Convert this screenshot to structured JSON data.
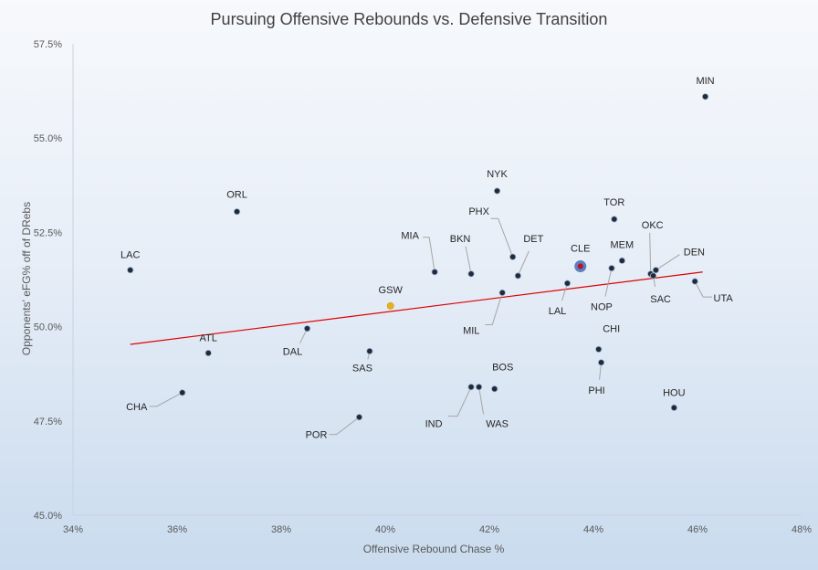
{
  "chart_data": {
    "type": "scatter",
    "title": "Pursuing Offensive Rebounds vs. Defensive Transition",
    "xlabel": "Offensive Rebound Chase %",
    "ylabel": "Opponents' eFG% off of DRebs",
    "xlim": [
      34,
      48
    ],
    "ylim": [
      45.0,
      57.5
    ],
    "x_ticks": [
      34,
      36,
      38,
      40,
      42,
      44,
      46,
      48
    ],
    "x_tick_labels": [
      "34%",
      "36%",
      "38%",
      "40%",
      "42%",
      "44%",
      "46%",
      "48%"
    ],
    "y_ticks": [
      45.0,
      47.5,
      50.0,
      52.5,
      55.0,
      57.5
    ],
    "y_tick_labels": [
      "45.0%",
      "47.5%",
      "50.0%",
      "52.5%",
      "55.0%",
      "57.5%"
    ],
    "grid": false,
    "trendline": {
      "type": "linear",
      "color": "#e00000",
      "x_range": [
        35.1,
        46.1
      ],
      "y_start": 49.53,
      "y_end": 51.45
    },
    "colors": {
      "default_point": "#1f2a3d",
      "point_outline": "#9fb3cc",
      "gsw": "#e8b21a",
      "cle": "#5b7fbf",
      "cle_center": "#c0102a",
      "trend": "#e00000"
    },
    "points": [
      {
        "team": "MIN",
        "x": 46.15,
        "y": 56.1
      },
      {
        "team": "NYK",
        "x": 42.15,
        "y": 53.6
      },
      {
        "team": "ORL",
        "x": 37.15,
        "y": 53.05
      },
      {
        "team": "TOR",
        "x": 44.4,
        "y": 52.85
      },
      {
        "team": "PHX",
        "x": 42.45,
        "y": 51.85
      },
      {
        "team": "MEM",
        "x": 44.55,
        "y": 51.75
      },
      {
        "team": "CLE",
        "x": 43.75,
        "y": 51.6,
        "highlight": "cle"
      },
      {
        "team": "NOP",
        "x": 44.35,
        "y": 51.55
      },
      {
        "team": "OKC",
        "x": 45.1,
        "y": 51.4
      },
      {
        "team": "DEN",
        "x": 45.2,
        "y": 51.5
      },
      {
        "team": "SAC",
        "x": 45.15,
        "y": 51.35
      },
      {
        "team": "LAC",
        "x": 35.1,
        "y": 51.5
      },
      {
        "team": "MIA",
        "x": 40.95,
        "y": 51.45
      },
      {
        "team": "BKN",
        "x": 41.65,
        "y": 51.4
      },
      {
        "team": "DET",
        "x": 42.55,
        "y": 51.35
      },
      {
        "team": "UTA",
        "x": 45.95,
        "y": 51.2
      },
      {
        "team": "LAL",
        "x": 43.5,
        "y": 51.15
      },
      {
        "team": "MIL",
        "x": 42.25,
        "y": 50.9
      },
      {
        "team": "GSW",
        "x": 40.1,
        "y": 50.55,
        "highlight": "gsw"
      },
      {
        "team": "DAL",
        "x": 38.5,
        "y": 49.95
      },
      {
        "team": "CHI",
        "x": 44.1,
        "y": 49.4
      },
      {
        "team": "SAS",
        "x": 39.7,
        "y": 49.35
      },
      {
        "team": "ATL",
        "x": 36.6,
        "y": 49.3
      },
      {
        "team": "PHI",
        "x": 44.15,
        "y": 49.05
      },
      {
        "team": "IND",
        "x": 41.65,
        "y": 48.4
      },
      {
        "team": "WAS",
        "x": 41.8,
        "y": 48.4
      },
      {
        "team": "BOS",
        "x": 42.1,
        "y": 48.35
      },
      {
        "team": "CHA",
        "x": 36.1,
        "y": 48.25
      },
      {
        "team": "HOU",
        "x": 45.55,
        "y": 47.85
      },
      {
        "team": "POR",
        "x": 39.5,
        "y": 47.6
      }
    ]
  }
}
